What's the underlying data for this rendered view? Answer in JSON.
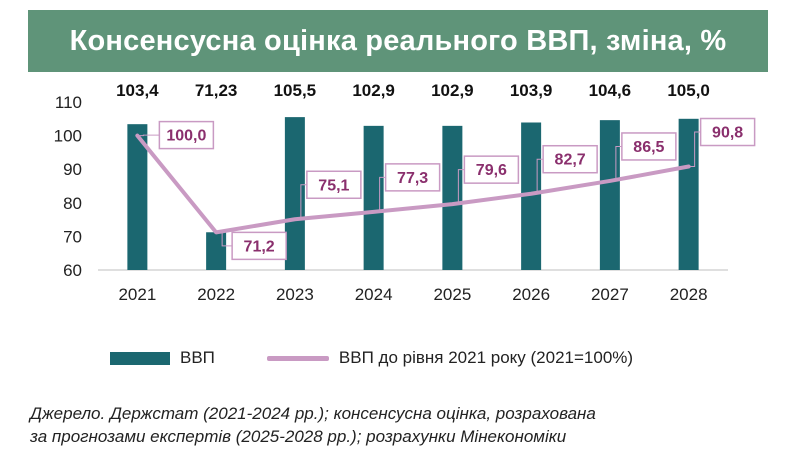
{
  "title": "Консенсусна оцінка реального ВВП, зміна, %",
  "colors": {
    "header_bg": "#5f9479",
    "bar": "#1b6770",
    "line": "#c99ac3",
    "label_text": "#8a2f6d"
  },
  "chart_data": {
    "type": "bar",
    "categories": [
      "2021",
      "2022",
      "2023",
      "2024",
      "2025",
      "2026",
      "2027",
      "2028"
    ],
    "ylim": [
      60,
      110
    ],
    "yticks": [
      "60",
      "70",
      "80",
      "90",
      "100",
      "110"
    ],
    "series": [
      {
        "name": "ВВП",
        "type": "bar",
        "values": [
          103.4,
          71.23,
          105.5,
          102.9,
          102.9,
          103.9,
          104.6,
          105.0
        ],
        "labels": [
          "103,4",
          "71,23",
          "105,5",
          "102,9",
          "102,9",
          "103,9",
          "104,6",
          "105,0"
        ]
      },
      {
        "name": "ВВП до рівня 2021 року (2021=100%)",
        "type": "line",
        "values": [
          100.0,
          71.2,
          75.1,
          77.3,
          79.6,
          82.7,
          86.5,
          90.8
        ],
        "labels": [
          "100,0",
          "71,2",
          "75,1",
          "77,3",
          "79,6",
          "82,7",
          "86,5",
          "90,8"
        ]
      }
    ],
    "legend": "bottom",
    "grid": false
  },
  "source_lines": [
    "Джерело. Держстат (2021-2024 рр.); консенсусна оцінка, розрахована",
    "за прогнозами експертів (2025-2028 рр.); розрахунки Мінекономіки"
  ]
}
